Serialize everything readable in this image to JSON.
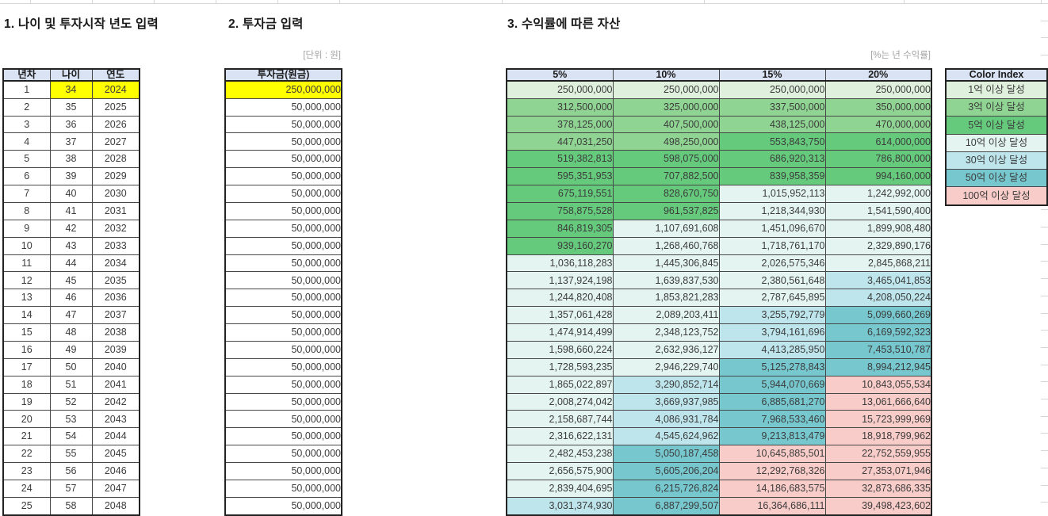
{
  "titles": {
    "section1": "1. 나이 및 투자시작 년도 입력",
    "section2": "2. 투자금 입력",
    "section3": "3. 수익률에 따른 자산"
  },
  "units": {
    "investment": "[단위 : 원]",
    "returns": "[%는 년 수익률]"
  },
  "age_table": {
    "headers": [
      "년차",
      "나이",
      "연도"
    ],
    "rows": [
      [
        1,
        34,
        2024
      ],
      [
        2,
        35,
        2025
      ],
      [
        3,
        36,
        2026
      ],
      [
        4,
        37,
        2027
      ],
      [
        5,
        38,
        2028
      ],
      [
        6,
        39,
        2029
      ],
      [
        7,
        40,
        2030
      ],
      [
        8,
        41,
        2031
      ],
      [
        9,
        42,
        2032
      ],
      [
        10,
        43,
        2033
      ],
      [
        11,
        44,
        2034
      ],
      [
        12,
        45,
        2035
      ],
      [
        13,
        46,
        2036
      ],
      [
        14,
        47,
        2037
      ],
      [
        15,
        48,
        2038
      ],
      [
        16,
        49,
        2039
      ],
      [
        17,
        50,
        2040
      ],
      [
        18,
        51,
        2041
      ],
      [
        19,
        52,
        2042
      ],
      [
        20,
        53,
        2043
      ],
      [
        21,
        54,
        2044
      ],
      [
        22,
        55,
        2045
      ],
      [
        23,
        56,
        2046
      ],
      [
        24,
        57,
        2047
      ],
      [
        25,
        58,
        2048
      ]
    ]
  },
  "investment_table": {
    "header": "투자금(원금)",
    "values": [
      250000000,
      50000000,
      50000000,
      50000000,
      50000000,
      50000000,
      50000000,
      50000000,
      50000000,
      50000000,
      50000000,
      50000000,
      50000000,
      50000000,
      50000000,
      50000000,
      50000000,
      50000000,
      50000000,
      50000000,
      50000000,
      50000000,
      50000000,
      50000000,
      50000000
    ]
  },
  "returns_table": {
    "headers": [
      "5%",
      "10%",
      "15%",
      "20%"
    ],
    "rows": [
      [
        250000000,
        250000000,
        250000000,
        250000000
      ],
      [
        312500000,
        325000000,
        337500000,
        350000000
      ],
      [
        378125000,
        407500000,
        438125000,
        470000000
      ],
      [
        447031250,
        498250000,
        553843750,
        614000000
      ],
      [
        519382813,
        598075000,
        686920313,
        786800000
      ],
      [
        595351953,
        707882500,
        839958359,
        994160000
      ],
      [
        675119551,
        828670750,
        1015952113,
        1242992000
      ],
      [
        758875528,
        961537825,
        1218344930,
        1541590400
      ],
      [
        846819305,
        1107691608,
        1451096670,
        1899908480
      ],
      [
        939160270,
        1268460768,
        1718761170,
        2329890176
      ],
      [
        1036118283,
        1445306845,
        2026575346,
        2845868211
      ],
      [
        1137924198,
        1639837530,
        2380561648,
        3465041853
      ],
      [
        1244820408,
        1853821283,
        2787645895,
        4208050224
      ],
      [
        1357061428,
        2089203411,
        3255792779,
        5099660269
      ],
      [
        1474914499,
        2348123752,
        3794161696,
        6169592323
      ],
      [
        1598660224,
        2632936127,
        4413285950,
        7453510787
      ],
      [
        1728593235,
        2946229740,
        5125278843,
        8994212945
      ],
      [
        1865022897,
        3290852714,
        5944070669,
        10843055534
      ],
      [
        2008274042,
        3669937985,
        6885681270,
        13061666640
      ],
      [
        2158687744,
        4086931784,
        7968533460,
        15723999969
      ],
      [
        2316622131,
        4545624962,
        9213813479,
        18918799962
      ],
      [
        2482453238,
        5050187458,
        10645885501,
        22752559955
      ],
      [
        2656575900,
        5605206204,
        12292768326,
        27353071946
      ],
      [
        2839404695,
        6215726824,
        14186683575,
        32873686335
      ],
      [
        3031374930,
        6887299507,
        16364686111,
        39498423602
      ]
    ]
  },
  "color_index": {
    "header": "Color Index",
    "items": [
      {
        "label": "1억 이상 달성",
        "color": "#DFF0DD",
        "threshold": 100000000
      },
      {
        "label": "3억 이상 달성",
        "color": "#8FD492",
        "threshold": 300000000
      },
      {
        "label": "5억 이상 달성",
        "color": "#66CA7D",
        "threshold": 500000000
      },
      {
        "label": "10억 이상 달성",
        "color": "#E3F4F1",
        "threshold": 1000000000
      },
      {
        "label": "30억 이상 달성",
        "color": "#BEE5EC",
        "threshold": 3000000000
      },
      {
        "label": "50억 이상 달성",
        "color": "#77C7CE",
        "threshold": 5000000000
      },
      {
        "label": "100억 이상 달성",
        "color": "#F8CCC8",
        "threshold": 10000000000
      }
    ]
  },
  "colors": {
    "header_fill": "#DAE3F4",
    "input_highlight": "#FFFF00",
    "grid_line": "#D6D6D6",
    "border_dark": "#222222",
    "border_inner": "#474747",
    "text_primary": "#1A1A1A",
    "text_number": "#3C3C3C",
    "text_muted": "#A3A3A3"
  }
}
